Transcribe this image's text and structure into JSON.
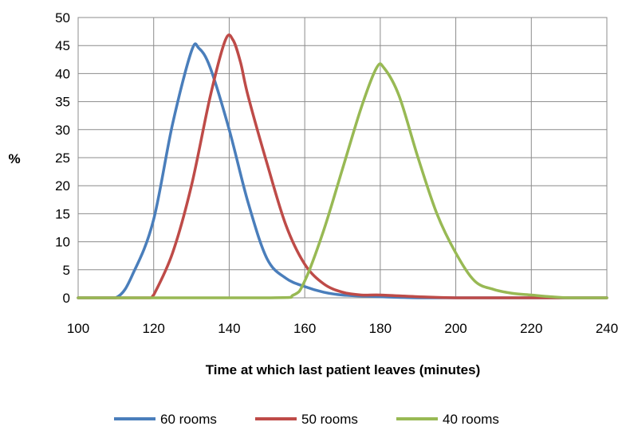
{
  "chart_data": {
    "type": "line",
    "title": "",
    "xlabel": "Time at which last patient leaves (minutes)",
    "ylabel": "%",
    "xlim": [
      100,
      240
    ],
    "ylim": [
      0,
      50
    ],
    "xticks": [
      100,
      120,
      140,
      160,
      180,
      200,
      220,
      240
    ],
    "yticks": [
      0,
      5,
      10,
      15,
      20,
      25,
      30,
      35,
      40,
      45,
      50
    ],
    "grid": true,
    "legend_position": "bottom",
    "series": [
      {
        "name": "60 rooms",
        "color": "#4a7ebb",
        "x": [
          100,
          110,
          115,
          120,
          125,
          130,
          132,
          135,
          140,
          145,
          150,
          155,
          160,
          165,
          170,
          180,
          190,
          200,
          220,
          240
        ],
        "y": [
          0,
          0,
          5,
          14,
          31,
          44,
          44.5,
          41,
          30,
          17,
          7,
          3.5,
          2,
          1,
          0.5,
          0.2,
          0,
          0,
          0,
          0
        ]
      },
      {
        "name": "50 rooms",
        "color": "#be4b48",
        "x": [
          100,
          110,
          119,
          120,
          125,
          130,
          135,
          139,
          141,
          143,
          145,
          150,
          155,
          160,
          165,
          170,
          175,
          180,
          190,
          200,
          220,
          240
        ],
        "y": [
          0,
          0,
          0,
          0.5,
          8,
          20,
          36,
          46,
          46,
          42,
          36,
          24,
          13,
          6,
          2.5,
          1,
          0.5,
          0.5,
          0.2,
          0,
          0,
          0
        ]
      },
      {
        "name": "40 rooms",
        "color": "#98b954",
        "x": [
          100,
          150,
          157,
          160,
          165,
          170,
          175,
          179,
          181,
          185,
          190,
          195,
          200,
          205,
          210,
          215,
          220,
          225,
          230,
          240
        ],
        "y": [
          0,
          0,
          0.5,
          3,
          12,
          23,
          34,
          41,
          41,
          36,
          25,
          15,
          8,
          3,
          1.5,
          0.8,
          0.5,
          0.2,
          0,
          0
        ]
      }
    ]
  }
}
